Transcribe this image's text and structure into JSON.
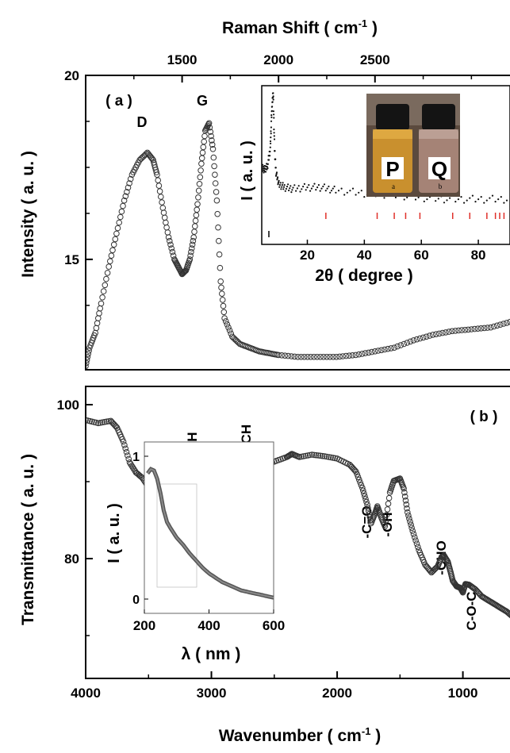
{
  "figure": {
    "colors": {
      "axis": "#000000",
      "marker": "#333333",
      "red_ticks": "#e0302a"
    }
  },
  "chart_data": [
    {
      "type": "scatter",
      "panel_label": "( a )",
      "xlabel": "Raman Shift ( cm-1 )",
      "xlabel_main": "Raman Shift ( cm",
      "xlabel_sup": "-1",
      "xlabel_end": " )",
      "ylabel": "Intensity ( a. u. )",
      "xlim": [
        1000,
        3200
      ],
      "ylim": [
        12,
        20
      ],
      "xticks": [
        1500,
        2000,
        2500
      ],
      "yticks": [
        15,
        20
      ],
      "annotations": [
        "D",
        "G"
      ],
      "series": [
        {
          "marker": "open-circle",
          "x": [
            1000,
            1020,
            1050,
            1080,
            1120,
            1160,
            1200,
            1240,
            1280,
            1320,
            1350,
            1370,
            1400,
            1430,
            1460,
            1480,
            1500,
            1520,
            1540,
            1560,
            1580,
            1600,
            1620,
            1640,
            1660,
            1680,
            1700,
            1720,
            1760,
            1800,
            1850,
            1900,
            1950,
            2000,
            2100,
            2200,
            2300,
            2400,
            2500,
            2600,
            2700,
            2800,
            2900,
            3000,
            3100,
            3200
          ],
          "y": [
            12.1,
            12.6,
            13.0,
            13.8,
            14.8,
            15.7,
            16.6,
            17.3,
            17.7,
            17.9,
            17.7,
            17.3,
            16.4,
            15.6,
            15.0,
            14.8,
            14.6,
            14.7,
            15.0,
            15.6,
            16.5,
            17.6,
            18.5,
            18.7,
            18.0,
            16.6,
            14.4,
            13.4,
            12.9,
            12.7,
            12.6,
            12.5,
            12.45,
            12.4,
            12.35,
            12.35,
            12.35,
            12.4,
            12.5,
            12.6,
            12.8,
            12.95,
            13.05,
            13.1,
            13.15,
            13.3
          ]
        }
      ]
    },
    {
      "type": "scatter",
      "panel_label": "inset-a",
      "xlabel": "2θ ( degree )",
      "ylabel": "I ( a. u. )",
      "xlim": [
        4,
        90
      ],
      "ylim": [
        0,
        1
      ],
      "xticks": [
        20,
        40,
        60,
        80
      ],
      "photo_labels": [
        "P",
        "Q",
        "a",
        "b"
      ],
      "reference_peaks": [
        26.5,
        44.5,
        50.5,
        54.5,
        59.5,
        71.0,
        77.0,
        83.0,
        86.0,
        87.5,
        89.0
      ],
      "series": [
        {
          "marker": "dot",
          "x": [
            4,
            5,
            6,
            7,
            7.5,
            8,
            8.5,
            9,
            10,
            12,
            15,
            20,
            25,
            30,
            40,
            50,
            60,
            70,
            80,
            90
          ],
          "y": [
            0.47,
            0.46,
            0.48,
            0.6,
            0.85,
            0.98,
            0.6,
            0.44,
            0.36,
            0.34,
            0.33,
            0.34,
            0.34,
            0.32,
            0.3,
            0.29,
            0.27,
            0.26,
            0.26,
            0.26
          ]
        }
      ]
    },
    {
      "type": "scatter",
      "panel_label": "( b )",
      "xlabel": "Wavenumber ( cm-1 )",
      "xlabel_main": "Wavenumber ( cm",
      "xlabel_sup": "-1",
      "xlabel_end": " )",
      "ylabel": "Transmittance ( a. u. )",
      "xlim": [
        4000,
        600
      ],
      "ylim": [
        70,
        100
      ],
      "xticks": [
        4000,
        3000,
        2000,
        1000
      ],
      "yticks": [
        80,
        100
      ],
      "annotations": [
        "-OH",
        "-CH",
        "-C=O",
        "-OH",
        "-CHO",
        "C-O-C"
      ],
      "series": [
        {
          "marker": "open-circle",
          "x": [
            4000,
            3900,
            3800,
            3750,
            3700,
            3650,
            3600,
            3550,
            3500,
            3400,
            3300,
            3200,
            3100,
            3000,
            2950,
            2900,
            2800,
            2700,
            2600,
            2500,
            2400,
            2360,
            2300,
            2200,
            2100,
            2000,
            1900,
            1850,
            1800,
            1760,
            1730,
            1700,
            1680,
            1650,
            1620,
            1580,
            1550,
            1500,
            1470,
            1440,
            1400,
            1350,
            1300,
            1250,
            1200,
            1170,
            1150,
            1120,
            1100,
            1080,
            1050,
            1020,
            1000,
            980,
            950,
            900,
            850,
            800,
            750,
            700,
            650,
            600
          ],
          "y": [
            98.0,
            97.6,
            97.9,
            97.0,
            95.2,
            92.5,
            91.2,
            90.5,
            89.3,
            88.1,
            87.7,
            88.1,
            88.8,
            89.6,
            89.9,
            90.1,
            91.1,
            91.6,
            92.1,
            92.6,
            93.2,
            93.6,
            93.2,
            93.5,
            93.3,
            93.0,
            92.2,
            91.3,
            89.2,
            87.0,
            84.6,
            85.8,
            86.8,
            85.4,
            84.2,
            88.6,
            90.1,
            90.4,
            89.1,
            86.0,
            83.6,
            81.1,
            79.2,
            78.2,
            79.0,
            80.2,
            80.4,
            79.6,
            78.4,
            77.1,
            76.4,
            76.2,
            75.6,
            76.7,
            76.6,
            76.0,
            75.1,
            74.6,
            74.1,
            73.6,
            73.1,
            72.4
          ]
        }
      ]
    },
    {
      "type": "line",
      "panel_label": "inset-b",
      "xlabel": "λ ( nm )",
      "ylabel": "I ( a. u. )",
      "xlim": [
        200,
        600
      ],
      "ylim": [
        -0.1,
        1.1
      ],
      "xticks": [
        200,
        400,
        600
      ],
      "yticks": [
        0,
        1
      ],
      "series": [
        {
          "x": [
            210,
            220,
            230,
            240,
            250,
            260,
            270,
            280,
            300,
            320,
            340,
            360,
            380,
            400,
            420,
            440,
            460,
            480,
            500,
            520,
            540,
            560,
            580,
            600
          ],
          "y": [
            0.88,
            0.91,
            0.9,
            0.84,
            0.74,
            0.62,
            0.54,
            0.5,
            0.43,
            0.38,
            0.32,
            0.27,
            0.22,
            0.18,
            0.15,
            0.12,
            0.1,
            0.08,
            0.06,
            0.05,
            0.04,
            0.03,
            0.02,
            0.01
          ]
        }
      ]
    }
  ]
}
